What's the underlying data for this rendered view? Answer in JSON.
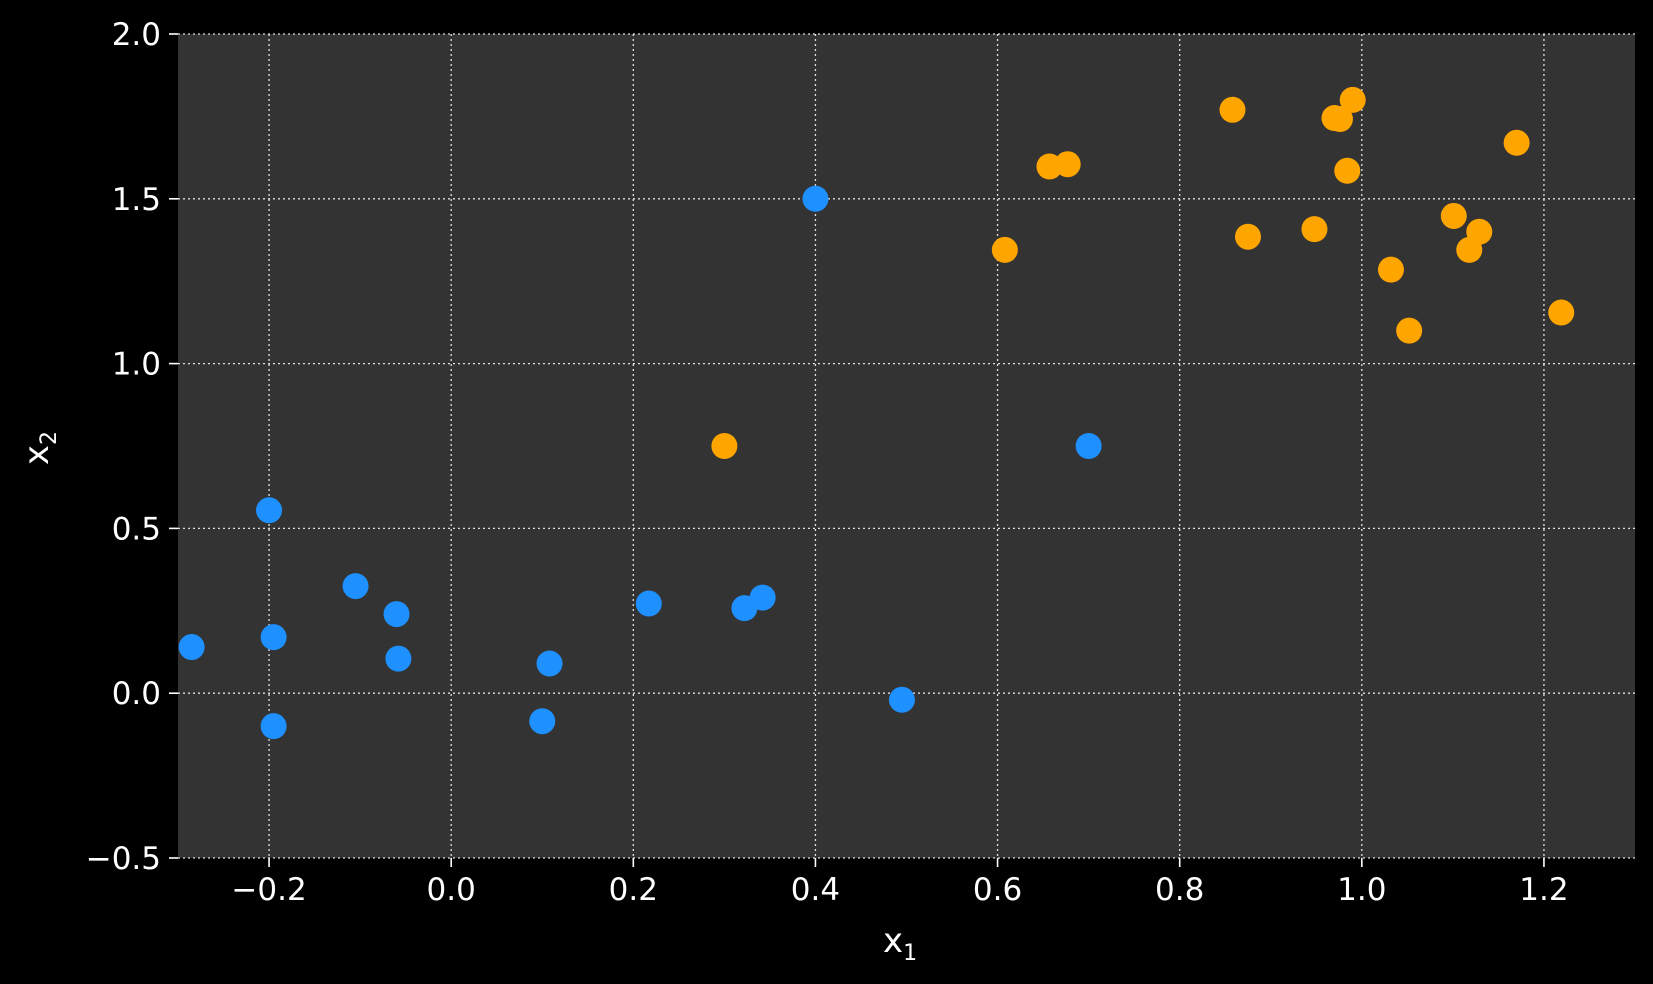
{
  "chart_data": {
    "type": "scatter",
    "title": "",
    "xlabel": "x",
    "xlabel_sub": "1",
    "ylabel": "x",
    "ylabel_sub": "2",
    "xlim": [
      -0.3,
      1.3
    ],
    "ylim": [
      -0.5,
      2.0
    ],
    "xticks": [
      -0.2,
      0.0,
      0.2,
      0.4,
      0.6,
      0.8,
      1.0,
      1.2
    ],
    "yticks": [
      -0.5,
      0.0,
      0.5,
      1.0,
      1.5,
      2.0
    ],
    "xtick_labels": [
      "−0.2",
      "0.0",
      "0.2",
      "0.4",
      "0.6",
      "0.8",
      "1.0",
      "1.2"
    ],
    "ytick_labels": [
      "−0.5",
      "0.0",
      "0.5",
      "1.0",
      "1.5",
      "2.0"
    ],
    "grid": true,
    "colors": {
      "figure_background": "#000000",
      "plot_background": "#333333",
      "grid": "#e0e0e0",
      "text": "#ffffff"
    },
    "series": [
      {
        "color": "#1e90ff",
        "points": [
          [
            -0.285,
            0.14
          ],
          [
            -0.2,
            0.555
          ],
          [
            -0.195,
            0.17
          ],
          [
            -0.195,
            -0.1
          ],
          [
            -0.105,
            0.325
          ],
          [
            -0.06,
            0.24
          ],
          [
            -0.058,
            0.105
          ],
          [
            0.1,
            -0.085
          ],
          [
            0.108,
            0.09
          ],
          [
            0.217,
            0.272
          ],
          [
            0.322,
            0.258
          ],
          [
            0.342,
            0.29
          ],
          [
            0.4,
            1.5
          ],
          [
            0.495,
            -0.02
          ],
          [
            0.7,
            0.75
          ]
        ]
      },
      {
        "color": "#ffa500",
        "points": [
          [
            0.3,
            0.75
          ],
          [
            0.608,
            1.345
          ],
          [
            0.657,
            1.598
          ],
          [
            0.677,
            1.605
          ],
          [
            0.858,
            1.77
          ],
          [
            0.875,
            1.385
          ],
          [
            0.948,
            1.408
          ],
          [
            0.97,
            1.745
          ],
          [
            0.976,
            1.742
          ],
          [
            0.984,
            1.585
          ],
          [
            0.99,
            1.8
          ],
          [
            1.032,
            1.285
          ],
          [
            1.052,
            1.1
          ],
          [
            1.101,
            1.448
          ],
          [
            1.118,
            1.345
          ],
          [
            1.129,
            1.4
          ],
          [
            1.17,
            1.67
          ],
          [
            1.219,
            1.155
          ]
        ]
      }
    ]
  }
}
